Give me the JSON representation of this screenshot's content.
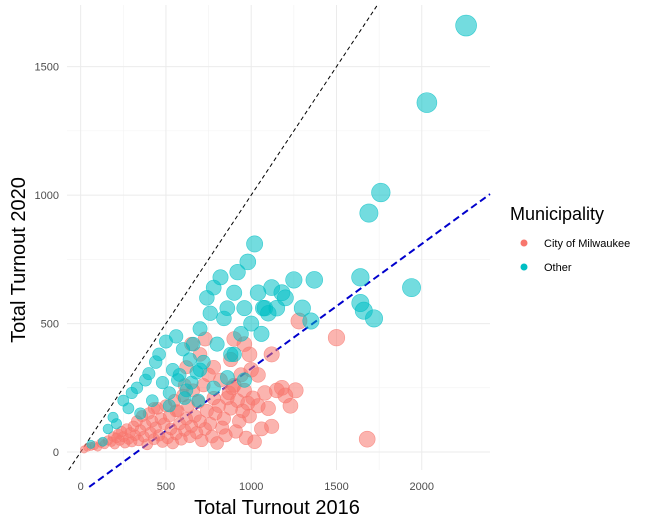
{
  "chart_data": {
    "type": "scatter",
    "title": "",
    "xlabel": "Total Turnout 2016",
    "ylabel": "Total Turnout 2020",
    "xlim": [
      -80,
      2400
    ],
    "ylim": [
      -70,
      1740
    ],
    "x_ticks": [
      0,
      500,
      1000,
      1500,
      2000
    ],
    "y_ticks": [
      0,
      500,
      1000,
      1500
    ],
    "grid": true,
    "legend": {
      "title": "Municipality",
      "position": "right"
    },
    "reference_lines": [
      {
        "kind": "identity",
        "style": "dashed",
        "color": "#000000",
        "intercept": 0,
        "slope": 1
      },
      {
        "kind": "fit",
        "style": "dashed",
        "color": "#0000cc",
        "intercept": -160,
        "slope": 0.485
      }
    ],
    "series": [
      {
        "name": "City of Milwaukee",
        "color": "#F8766D",
        "points": [
          [
            20,
            10
          ],
          [
            40,
            18
          ],
          [
            60,
            22
          ],
          [
            80,
            25
          ],
          [
            100,
            20
          ],
          [
            120,
            35
          ],
          [
            140,
            30
          ],
          [
            160,
            45
          ],
          [
            180,
            40
          ],
          [
            190,
            60
          ],
          [
            200,
            30
          ],
          [
            210,
            55
          ],
          [
            220,
            70
          ],
          [
            230,
            45
          ],
          [
            240,
            80
          ],
          [
            250,
            60
          ],
          [
            260,
            35
          ],
          [
            270,
            90
          ],
          [
            280,
            50
          ],
          [
            290,
            75
          ],
          [
            300,
            40
          ],
          [
            310,
            100
          ],
          [
            320,
            65
          ],
          [
            330,
            120
          ],
          [
            340,
            45
          ],
          [
            350,
            85
          ],
          [
            360,
            140
          ],
          [
            370,
            60
          ],
          [
            380,
            105
          ],
          [
            390,
            30
          ],
          [
            400,
            150
          ],
          [
            410,
            75
          ],
          [
            420,
            120
          ],
          [
            430,
            50
          ],
          [
            440,
            95
          ],
          [
            450,
            170
          ],
          [
            460,
            65
          ],
          [
            470,
            130
          ],
          [
            480,
            40
          ],
          [
            490,
            110
          ],
          [
            500,
            180
          ],
          [
            510,
            55
          ],
          [
            520,
            140
          ],
          [
            530,
            90
          ],
          [
            540,
            35
          ],
          [
            550,
            200
          ],
          [
            560,
            70
          ],
          [
            570,
            160
          ],
          [
            580,
            110
          ],
          [
            590,
            50
          ],
          [
            600,
            220
          ],
          [
            610,
            85
          ],
          [
            620,
            130
          ],
          [
            630,
            180
          ],
          [
            640,
            60
          ],
          [
            650,
            100
          ],
          [
            660,
            240
          ],
          [
            670,
            140
          ],
          [
            680,
            75
          ],
          [
            690,
            195
          ],
          [
            700,
            120
          ],
          [
            710,
            45
          ],
          [
            720,
            260
          ],
          [
            730,
            90
          ],
          [
            740,
            160
          ],
          [
            750,
            300
          ],
          [
            760,
            110
          ],
          [
            770,
            60
          ],
          [
            780,
            210
          ],
          [
            790,
            150
          ],
          [
            800,
            35
          ],
          [
            810,
            180
          ],
          [
            820,
            280
          ],
          [
            830,
            95
          ],
          [
            840,
            130
          ],
          [
            850,
            65
          ],
          [
            860,
            210
          ],
          [
            870,
            230
          ],
          [
            880,
            170
          ],
          [
            890,
            250
          ],
          [
            900,
            260
          ],
          [
            910,
            80
          ],
          [
            920,
            200
          ],
          [
            930,
            120
          ],
          [
            940,
            300
          ],
          [
            950,
            160
          ],
          [
            960,
            240
          ],
          [
            970,
            55
          ],
          [
            980,
            190
          ],
          [
            990,
            140
          ],
          [
            1000,
            320
          ],
          [
            1010,
            210
          ],
          [
            1020,
            40
          ],
          [
            1040,
            180
          ],
          [
            1060,
            90
          ],
          [
            1080,
            230
          ],
          [
            1100,
            170
          ],
          [
            1120,
            100
          ],
          [
            1150,
            240
          ],
          [
            1180,
            250
          ],
          [
            1200,
            220
          ],
          [
            1230,
            180
          ],
          [
            1260,
            240
          ],
          [
            1280,
            510
          ],
          [
            1500,
            445
          ],
          [
            1680,
            50
          ],
          [
            780,
            330
          ],
          [
            880,
            360
          ],
          [
            960,
            420
          ],
          [
            1040,
            300
          ],
          [
            650,
            420
          ],
          [
            700,
            380
          ],
          [
            560,
            160
          ],
          [
            430,
            170
          ],
          [
            620,
            330
          ],
          [
            730,
            440
          ],
          [
            990,
            380
          ],
          [
            1120,
            380
          ],
          [
            900,
            440
          ],
          [
            610,
            260
          ]
        ]
      },
      {
        "name": "Other",
        "color": "#00BFC4",
        "points": [
          [
            60,
            30
          ],
          [
            130,
            40
          ],
          [
            160,
            90
          ],
          [
            190,
            135
          ],
          [
            210,
            110
          ],
          [
            250,
            200
          ],
          [
            280,
            170
          ],
          [
            300,
            230
          ],
          [
            330,
            250
          ],
          [
            350,
            150
          ],
          [
            380,
            280
          ],
          [
            400,
            305
          ],
          [
            420,
            200
          ],
          [
            440,
            350
          ],
          [
            460,
            380
          ],
          [
            480,
            270
          ],
          [
            500,
            430
          ],
          [
            520,
            180
          ],
          [
            540,
            320
          ],
          [
            560,
            450
          ],
          [
            580,
            300
          ],
          [
            600,
            400
          ],
          [
            620,
            240
          ],
          [
            640,
            360
          ],
          [
            660,
            420
          ],
          [
            680,
            310
          ],
          [
            700,
            480
          ],
          [
            720,
            350
          ],
          [
            740,
            600
          ],
          [
            760,
            540
          ],
          [
            780,
            640
          ],
          [
            800,
            420
          ],
          [
            820,
            680
          ],
          [
            840,
            520
          ],
          [
            860,
            560
          ],
          [
            880,
            380
          ],
          [
            900,
            620
          ],
          [
            920,
            700
          ],
          [
            940,
            460
          ],
          [
            960,
            560
          ],
          [
            980,
            740
          ],
          [
            1000,
            500
          ],
          [
            1020,
            810
          ],
          [
            1040,
            620
          ],
          [
            1060,
            460
          ],
          [
            1080,
            560
          ],
          [
            1100,
            540
          ],
          [
            1120,
            640
          ],
          [
            1150,
            560
          ],
          [
            1180,
            620
          ],
          [
            1200,
            600
          ],
          [
            1250,
            670
          ],
          [
            1300,
            560
          ],
          [
            1350,
            510
          ],
          [
            1370,
            670
          ],
          [
            1640,
            680
          ],
          [
            1640,
            580
          ],
          [
            1660,
            550
          ],
          [
            1690,
            930
          ],
          [
            1720,
            520
          ],
          [
            1760,
            1010
          ],
          [
            1940,
            640
          ],
          [
            2030,
            1360
          ],
          [
            2260,
            1660
          ],
          [
            520,
            230
          ],
          [
            570,
            280
          ],
          [
            610,
            210
          ],
          [
            650,
            270
          ],
          [
            690,
            200
          ],
          [
            1070,
            560
          ],
          [
            900,
            380
          ],
          [
            780,
            250
          ],
          [
            860,
            290
          ],
          [
            960,
            280
          ],
          [
            700,
            320
          ]
        ]
      }
    ]
  }
}
